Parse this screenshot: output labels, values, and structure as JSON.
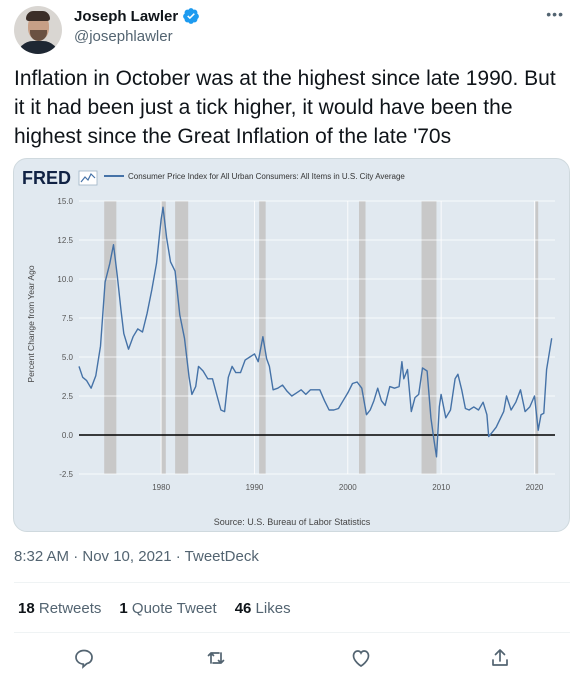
{
  "user": {
    "display_name": "Joseph Lawler",
    "handle": "@josephlawler"
  },
  "tweet": {
    "text": "Inflation in October was at the highest since late 1990. But it it had been just a tick higher, it would have been the highest since the Great Inflation of the late '70s",
    "timestamp": "8:32 AM · Nov 10, 2021 · TweetDeck",
    "stats": {
      "retweets_count": "18",
      "retweets_label": "Retweets",
      "quote_count": "1",
      "quote_label": "Quote Tweet",
      "likes_count": "46",
      "likes_label": "Likes"
    }
  },
  "icons": [
    "verified-icon",
    "more-icon",
    "reply-icon",
    "retweet-icon",
    "like-icon",
    "share-icon"
  ],
  "colors": {
    "verified": "#1d9bf0",
    "series": "#4572a7",
    "recession": "#c8c8c8",
    "chart_bg": "#e1e9f0"
  },
  "chart_data": {
    "type": "line",
    "logo": "FRED",
    "legend": "Consumer Price Index for All Urban Consumers: All Items in U.S. City Average",
    "ylabel": "Percent Change from Year Ago",
    "source": "Source: U.S. Bureau of Labor Statistics",
    "xlim": [
      1971.2,
      2022.2
    ],
    "ylim": [
      -2.5,
      15.0
    ],
    "xticks": [
      1980,
      1990,
      2000,
      2010,
      2020
    ],
    "xtick_labels": [
      "1980",
      "1990",
      "2000",
      "2010",
      "2020"
    ],
    "yticks": [
      15.0,
      12.5,
      10.0,
      7.5,
      5.0,
      2.5,
      0.0,
      -2.5
    ],
    "ytick_labels": [
      "15.0",
      "12.5",
      "10.0",
      "7.5",
      "5.0",
      "2.5",
      "0.0",
      "-2.5"
    ],
    "grid": true,
    "recessions": [
      [
        1973.9,
        1975.2
      ],
      [
        1980.0,
        1980.5
      ],
      [
        1981.5,
        1982.9
      ],
      [
        1990.5,
        1991.2
      ],
      [
        2001.2,
        2001.9
      ],
      [
        2007.9,
        2009.5
      ],
      [
        2020.1,
        2020.4
      ]
    ],
    "series": [
      {
        "x": [
          1971.2,
          1971.6,
          1972.0,
          1972.5,
          1973.0,
          1973.5,
          1974.0,
          1974.5,
          1974.9,
          1975.3,
          1975.7,
          1976.0,
          1976.5,
          1977.0,
          1977.5,
          1978.0,
          1978.5,
          1979.0,
          1979.5,
          1980.0,
          1980.2,
          1980.6,
          1981.0,
          1981.5,
          1982.0,
          1982.5,
          1983.0,
          1983.3,
          1983.7,
          1984.0,
          1984.5,
          1985.0,
          1985.5,
          1986.0,
          1986.4,
          1986.8,
          1987.2,
          1987.6,
          1988.0,
          1988.5,
          1989.0,
          1989.5,
          1990.0,
          1990.4,
          1990.9,
          1991.3,
          1991.6,
          1992.0,
          1992.5,
          1993.0,
          1993.5,
          1994.0,
          1994.5,
          1995.0,
          1995.5,
          1996.0,
          1996.5,
          1997.0,
          1997.5,
          1998.0,
          1998.5,
          1999.0,
          1999.5,
          2000.0,
          2000.5,
          2001.0,
          2001.5,
          2002.0,
          2002.4,
          2002.8,
          2003.2,
          2003.6,
          2004.0,
          2004.5,
          2005.0,
          2005.5,
          2005.8,
          2006.0,
          2006.4,
          2006.8,
          2007.2,
          2007.6,
          2008.0,
          2008.5,
          2008.9,
          2009.2,
          2009.5,
          2009.8,
          2010.0,
          2010.5,
          2011.0,
          2011.5,
          2011.8,
          2012.2,
          2012.6,
          2013.0,
          2013.5,
          2014.0,
          2014.5,
          2014.9,
          2015.1,
          2015.5,
          2015.9,
          2016.3,
          2016.7,
          2017.0,
          2017.5,
          2018.0,
          2018.5,
          2019.0,
          2019.5,
          2020.0,
          2020.4,
          2020.7,
          2021.0,
          2021.3,
          2021.6,
          2021.85
        ],
        "y": [
          4.4,
          3.7,
          3.5,
          3.0,
          3.8,
          5.7,
          9.8,
          11.0,
          12.2,
          10.2,
          8.0,
          6.5,
          5.5,
          6.3,
          6.8,
          6.6,
          7.8,
          9.3,
          11.0,
          13.8,
          14.6,
          12.6,
          11.1,
          10.5,
          7.7,
          6.2,
          3.7,
          2.6,
          3.1,
          4.4,
          4.1,
          3.6,
          3.6,
          2.5,
          1.6,
          1.5,
          3.7,
          4.4,
          4.0,
          4.0,
          4.8,
          5.0,
          5.2,
          4.7,
          6.3,
          4.9,
          4.4,
          2.9,
          3.0,
          3.2,
          2.8,
          2.5,
          2.7,
          2.9,
          2.6,
          2.9,
          2.9,
          2.9,
          2.2,
          1.6,
          1.6,
          1.7,
          2.2,
          2.7,
          3.3,
          3.4,
          3.0,
          1.3,
          1.6,
          2.2,
          3.0,
          2.2,
          1.9,
          3.1,
          3.0,
          3.1,
          4.7,
          3.6,
          4.2,
          1.5,
          2.4,
          2.6,
          4.3,
          4.1,
          1.1,
          -0.2,
          -1.4,
          1.8,
          2.6,
          1.1,
          1.6,
          3.6,
          3.9,
          2.9,
          1.7,
          1.6,
          1.8,
          1.6,
          2.1,
          1.3,
          -0.1,
          0.2,
          0.5,
          1.0,
          1.5,
          2.5,
          1.6,
          2.1,
          2.9,
          1.5,
          1.8,
          2.5,
          0.3,
          1.3,
          1.4,
          4.2,
          5.3,
          6.2
        ]
      }
    ]
  }
}
